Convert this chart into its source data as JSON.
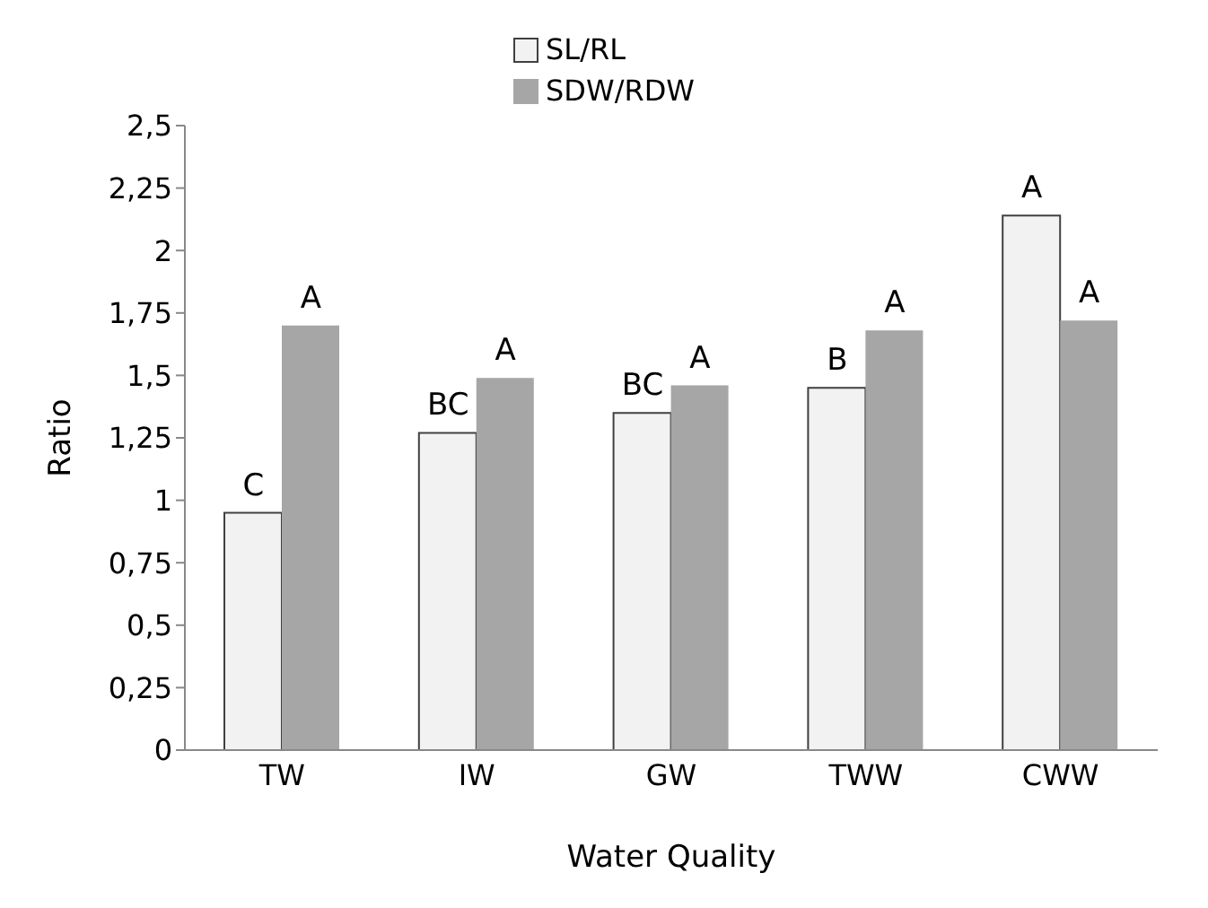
{
  "chart_data": {
    "type": "bar",
    "xlabel": "Water Quality",
    "ylabel": "Ratio",
    "categories": [
      "TW",
      "IW",
      "GW",
      "TWW",
      "CWW"
    ],
    "series": [
      {
        "name": "SL/RL",
        "color": "#f2f2f2",
        "values": [
          0.95,
          1.27,
          1.35,
          1.45,
          2.14
        ]
      },
      {
        "name": "SDW/RDW",
        "color": "#a6a6a6",
        "values": [
          1.7,
          1.49,
          1.46,
          1.68,
          1.72
        ]
      }
    ],
    "ylim": [
      0,
      2.5
    ],
    "yticks": [
      0,
      {
        "value": 0.25,
        "label": "0,25"
      },
      {
        "value": 0.5,
        "label": "0,5"
      },
      {
        "value": 0.75,
        "label": "0,75"
      },
      1,
      {
        "value": 1.25,
        "label": "1,25"
      },
      {
        "value": 1.5,
        "label": "1,5"
      },
      {
        "value": 1.75,
        "label": "1,75"
      },
      2,
      {
        "value": 2.25,
        "label": "2,25"
      },
      {
        "value": 2.5,
        "label": "2,5"
      }
    ],
    "grid": false,
    "legend": "top",
    "annotations": [
      {
        "text": "C",
        "x": "TW",
        "y": 0.95
      },
      {
        "text": "A",
        "x": "TW",
        "y": 1.7
      },
      {
        "text": "BC",
        "x": "IW",
        "y": 1.27
      },
      {
        "text": "A",
        "x": "IW",
        "y": 1.49
      },
      {
        "text": "BC",
        "x": "GW",
        "y": 1.35
      },
      {
        "text": "A",
        "x": "GW",
        "y": 1.46
      },
      {
        "text": "B",
        "x": "TWW",
        "y": 1.45
      },
      {
        "text": "A",
        "x": "TWW",
        "y": 1.68
      },
      {
        "text": "A",
        "x": "CWW",
        "y": 2.14
      },
      {
        "text": "A",
        "x": "CWW",
        "y": 1.72
      }
    ]
  }
}
